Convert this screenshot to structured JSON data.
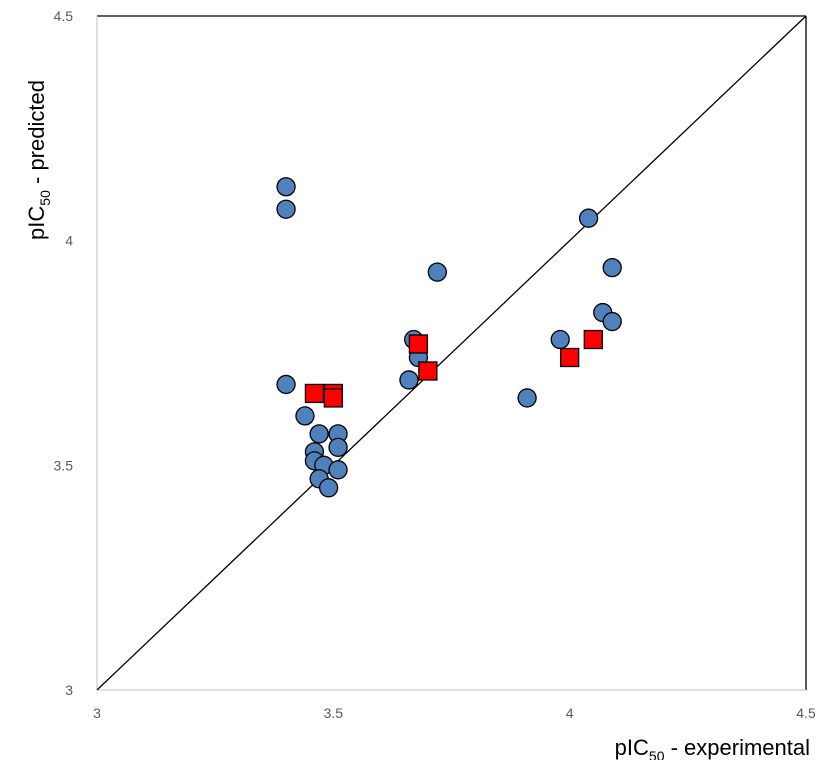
{
  "chart_data": {
    "type": "scatter",
    "xlabel": {
      "prefix": "pIC",
      "sub": "50",
      "suffix": " - experimental"
    },
    "ylabel": {
      "prefix": "pIC",
      "sub": "50",
      "suffix": " - predicted"
    },
    "xlim": [
      3,
      4.5
    ],
    "ylim": [
      3,
      4.5
    ],
    "x_ticks": [
      "3",
      "3.5",
      "4",
      "4.5"
    ],
    "y_ticks": [
      "3",
      "3.5",
      "4",
      "4.5"
    ],
    "grid": false,
    "reference_line": {
      "from": [
        3,
        3
      ],
      "to": [
        4.5,
        4.5
      ]
    },
    "series": [
      {
        "marker": "circle",
        "color": "#4F81BD",
        "points": [
          {
            "x": 3.4,
            "y": 4.12
          },
          {
            "x": 3.4,
            "y": 4.07
          },
          {
            "x": 3.4,
            "y": 3.68
          },
          {
            "x": 3.44,
            "y": 3.61
          },
          {
            "x": 3.47,
            "y": 3.57
          },
          {
            "x": 3.51,
            "y": 3.57
          },
          {
            "x": 3.46,
            "y": 3.53
          },
          {
            "x": 3.51,
            "y": 3.54
          },
          {
            "x": 3.46,
            "y": 3.51
          },
          {
            "x": 3.48,
            "y": 3.5
          },
          {
            "x": 3.51,
            "y": 3.49
          },
          {
            "x": 3.47,
            "y": 3.47
          },
          {
            "x": 3.49,
            "y": 3.45
          },
          {
            "x": 3.66,
            "y": 3.69
          },
          {
            "x": 3.67,
            "y": 3.78
          },
          {
            "x": 3.68,
            "y": 3.74
          },
          {
            "x": 3.72,
            "y": 3.93
          },
          {
            "x": 3.91,
            "y": 3.65
          },
          {
            "x": 3.98,
            "y": 3.78
          },
          {
            "x": 4.04,
            "y": 4.05
          },
          {
            "x": 4.07,
            "y": 3.84
          },
          {
            "x": 4.09,
            "y": 3.94
          },
          {
            "x": 4.09,
            "y": 3.82
          }
        ]
      },
      {
        "marker": "square",
        "color": "#FF0000",
        "points": [
          {
            "x": 3.46,
            "y": 3.66
          },
          {
            "x": 3.5,
            "y": 3.66
          },
          {
            "x": 3.5,
            "y": 3.65
          },
          {
            "x": 3.68,
            "y": 3.77
          },
          {
            "x": 3.7,
            "y": 3.71
          },
          {
            "x": 4.0,
            "y": 3.74
          },
          {
            "x": 4.05,
            "y": 3.78
          }
        ]
      }
    ]
  }
}
